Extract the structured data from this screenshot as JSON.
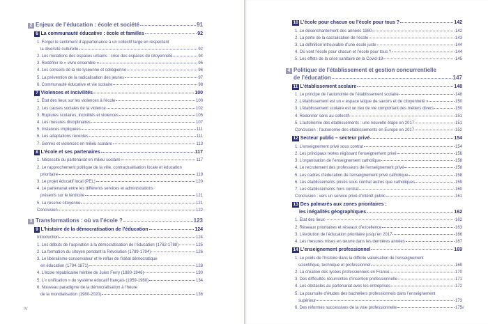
{
  "left_page": {
    "folio": "IV",
    "entries": [
      {
        "type": "part",
        "num": "2",
        "lines": [
          "Enjeux de l’éducation : école et société"
        ],
        "page": "91"
      },
      {
        "type": "chapter",
        "num": "6",
        "lines": [
          "La communauté éducative : école et familles"
        ],
        "page": "92"
      },
      {
        "type": "item",
        "lines": [
          "1. Forger le sentiment d’appartenance à un collectif large en respectant",
          "la diversité culturelle"
        ],
        "page": "92"
      },
      {
        "type": "item",
        "lines": [
          "2. Les mutations des espaces urbains : crise des espaces de citoyenneté"
        ],
        "page": "94"
      },
      {
        "type": "item",
        "lines": [
          "3. Redéfinir le « vivre ensemble »"
        ],
        "page": "95"
      },
      {
        "type": "item",
        "lines": [
          "4. Les conseils de la vie lycéenne et collégienne"
        ],
        "page": "96"
      },
      {
        "type": "item",
        "lines": [
          "5. La prévention de la radicalisation des jeunes"
        ],
        "page": "97"
      },
      {
        "type": "item",
        "lines": [
          "6. Communauté éducative et vie scolaire"
        ],
        "page": "98"
      },
      {
        "type": "chapter",
        "num": "7",
        "lines": [
          "Violences et incivilités"
        ],
        "page": "100"
      },
      {
        "type": "item",
        "lines": [
          "1. État des lieux sur les violences à l’école"
        ],
        "page": "100"
      },
      {
        "type": "item",
        "lines": [
          "2. Les causes sociales de la violence"
        ],
        "page": "102"
      },
      {
        "type": "item",
        "lines": [
          "3. Ruptures scolaires, incivilités et violences"
        ],
        "page": "105"
      },
      {
        "type": "item",
        "lines": [
          "4. Les mesures disciplinaires"
        ],
        "page": "107"
      },
      {
        "type": "item",
        "lines": [
          "5. Instances impliquées"
        ],
        "page": "111"
      },
      {
        "type": "item",
        "lines": [
          "6. Les adaptations récentes"
        ],
        "page": "111"
      },
      {
        "type": "item",
        "lines": [
          "7. Genres et violences en milieu scolaire"
        ],
        "page": "113"
      },
      {
        "type": "chapter",
        "num": "8",
        "lines": [
          "L’école et ses partenaires"
        ],
        "page": "117"
      },
      {
        "type": "item",
        "lines": [
          "1. Nécessité du partenariat en milieu scolaire"
        ],
        "page": "117"
      },
      {
        "type": "item",
        "lines": [
          "2. Le rapprochement politique de la ville, contractualisation locale et éducation",
          "prioritaire"
        ],
        "page": "119"
      },
      {
        "type": "item",
        "lines": [
          "3. Le projet éducatif local (PEL)"
        ],
        "page": "120"
      },
      {
        "type": "item",
        "lines": [
          "4. Le partenariat entre les différents services et administrations",
          "présents sur le territoire"
        ],
        "page": "121"
      },
      {
        "type": "item",
        "lines": [
          "5. La réserve citoyenne"
        ],
        "page": "121"
      },
      {
        "type": "item",
        "noind": true,
        "lines": [
          "Conclusion"
        ],
        "page": "122"
      },
      {
        "type": "part",
        "num": "3",
        "lines": [
          "Transformations : où va l’école ?"
        ],
        "page": "123"
      },
      {
        "type": "chapter",
        "num": "9",
        "lines": [
          "L’histoire de la démocratisation de l’éducation"
        ],
        "page": "124"
      },
      {
        "type": "item",
        "noind": true,
        "lines": [
          "Introduction"
        ],
        "page": "124"
      },
      {
        "type": "item",
        "lines": [
          "1. Les débuts de l’aspiration à la démocratisation de l’éducation (1762-1788)"
        ],
        "page": "125"
      },
      {
        "type": "item",
        "lines": [
          "2. La formation du citoyen pendant la Révolution (1789-1794)"
        ],
        "page": "126"
      },
      {
        "type": "item",
        "lines": [
          "3. Le libéralisme conservateur et le reflux de l’idéal démocratique",
          "en éducation (1794-1871)"
        ],
        "page": "128"
      },
      {
        "type": "item",
        "lines": [
          "4. L’école républicaine héritée de Jules Ferry (1880-1946)"
        ],
        "page": "130"
      },
      {
        "type": "item",
        "lines": [
          "5. L’« unification » du système éducatif français (1959-1980)"
        ],
        "page": "134"
      },
      {
        "type": "item",
        "lines": [
          "6. Nouveau paradigme de la démocratisation à l’heure",
          "de la mondialisation (1980-2020)"
        ],
        "page": "136"
      }
    ]
  },
  "right_page": {
    "folio": "V",
    "entries": [
      {
        "type": "chapter",
        "num": "10",
        "lines": [
          "L’école pour chacun ou l’école pour tous ?"
        ],
        "page": "142"
      },
      {
        "type": "item",
        "lines": [
          "1. Le désenchantement des années 1980"
        ],
        "page": "142"
      },
      {
        "type": "item",
        "lines": [
          "2. La perte de la sacralisation de l’école"
        ],
        "page": "143"
      },
      {
        "type": "item",
        "lines": [
          "3. La définition introuvable d’une école juste"
        ],
        "page": "144"
      },
      {
        "type": "item",
        "lines": [
          "4. Où vont l’école pour chacun et l’école pour tous ?"
        ],
        "page": "144"
      },
      {
        "type": "item",
        "lines": [
          "5. Les effets de la crise sanitaire de la Covid-19"
        ],
        "page": "145"
      },
      {
        "type": "part",
        "num": "4",
        "lines": [
          "Politique de l’établissement et gestion concurrentielle",
          "de l’éducation"
        ],
        "page": "147"
      },
      {
        "type": "chapter",
        "num": "11",
        "lines": [
          "L’établissement scolaire"
        ],
        "page": "148"
      },
      {
        "type": "item",
        "lines": [
          "1. Le principe de l’autonomie de l’établissement scolaire"
        ],
        "page": "148"
      },
      {
        "type": "item",
        "lines": [
          "2. L’établissement est un « espace laïque de savoirs et de citoyenneté »"
        ],
        "page": "150"
      },
      {
        "type": "item",
        "lines": [
          "3. L’établissement scolaire est un lieu de vie comportant des métiers divers"
        ],
        "page": "150"
      },
      {
        "type": "item",
        "lines": [
          "4. Redonner sens au collectif"
        ],
        "page": "151"
      },
      {
        "type": "item",
        "lines": [
          "5. L’autonomie des établissements : une nouvelle étape en 2017"
        ],
        "page": "151"
      },
      {
        "type": "item",
        "noind": true,
        "lines": [
          "Conclusion : l’autonomie des établissements en Europe en 2017"
        ],
        "page": "152"
      },
      {
        "type": "chapter",
        "num": "12",
        "lines": [
          "Secteur public – secteur privé"
        ],
        "page": "154"
      },
      {
        "type": "item",
        "lines": [
          "1. L’enseignement privé sous contrat"
        ],
        "page": "154"
      },
      {
        "type": "item",
        "lines": [
          "2. Les principaux textes régissant l’enseignement privé"
        ],
        "page": "156"
      },
      {
        "type": "item",
        "lines": [
          "3. L’organisation de l’enseignement catholique"
        ],
        "page": "158"
      },
      {
        "type": "item",
        "lines": [
          "4. Le recrutement des professeurs de l’enseignement privé"
        ],
        "page": "158"
      },
      {
        "type": "item",
        "lines": [
          "5. Les cadres d’éducation de l’enseignement privé catholique"
        ],
        "page": "158"
      },
      {
        "type": "item",
        "lines": [
          "6. Les établissements privés sous contrat autres que catholiques"
        ],
        "page": "159"
      },
      {
        "type": "item",
        "lines": [
          "7. Les établissements hors contrat"
        ],
        "page": "160"
      },
      {
        "type": "item",
        "noind": true,
        "lines": [
          "Conclusion : vers un service privé d’intérêt public"
        ],
        "page": "161"
      },
      {
        "type": "chapter",
        "num": "13",
        "lines": [
          "Des palmarès aux zones prioritaires :",
          "les inégalités géographiques"
        ],
        "page": "162"
      },
      {
        "type": "item",
        "lines": [
          "1. État des lieux"
        ],
        "page": "162"
      },
      {
        "type": "item",
        "lines": [
          "2. Réseaux prioritaires et réseaux d’excellence"
        ],
        "page": "163"
      },
      {
        "type": "item",
        "lines": [
          "3. L’évolution de l’éducation prioritaire jusqu’en 2017"
        ],
        "page": "166"
      },
      {
        "type": "item",
        "lines": [
          "4. Les mesures mises en œuvre dans les dernières années"
        ],
        "page": "167"
      },
      {
        "type": "chapter",
        "num": "14",
        "lines": [
          "L’enseignement professionnel"
        ],
        "page": "169"
      },
      {
        "type": "item",
        "lines": [
          "1. Le poids de l’histoire dans la difficile valorisation de l’enseignement",
          "scientifique, technique et professionnel"
        ],
        "page": "169"
      },
      {
        "type": "item",
        "lines": [
          "2. La création des lycées professionnels en France"
        ],
        "page": "170"
      },
      {
        "type": "item",
        "lines": [
          "3. Des difficultés récurrentes d’insertion professionnelle"
        ],
        "page": "171"
      },
      {
        "type": "item",
        "lines": [
          "4. Les obstacles au partenariat avec les entreprises"
        ],
        "page": "172"
      },
      {
        "type": "item",
        "lines": [
          "5. La poursuite d’études des bacheliers professionnels dans l’enseignement",
          "supérieur"
        ],
        "page": "173"
      },
      {
        "type": "item",
        "lines": [
          "6. Des réformes successives de la voie professionnelle"
        ],
        "page": "175"
      }
    ]
  },
  "colors": {
    "part_box": "#9a9cb5",
    "part_text": "#5a5f8f",
    "chapter": "#2c3072",
    "item_text": "#4a4f85"
  }
}
